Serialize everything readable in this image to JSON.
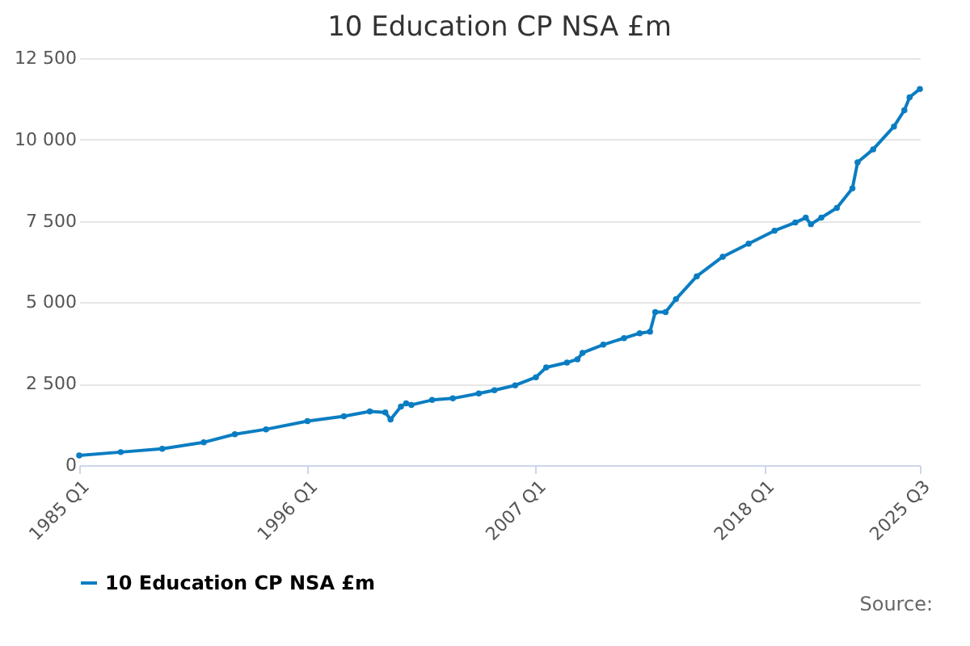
{
  "chart_data": {
    "type": "line",
    "title": "10 Education CP NSA £m",
    "x": [
      "1985-01",
      "1987-01",
      "1989-01",
      "1991-01",
      "1992-07",
      "1994-01",
      "1996-01",
      "1997-10",
      "1999-01",
      "1999-10",
      "2000-01",
      "2000-07",
      "2000-10",
      "2001-01",
      "2002-01",
      "2003-01",
      "2004-04",
      "2005-01",
      "2006-01",
      "2007-01",
      "2007-07",
      "2008-07",
      "2009-01",
      "2009-04",
      "2010-04",
      "2011-04",
      "2012-01",
      "2012-07",
      "2012-10",
      "2013-04",
      "2013-10",
      "2014-10",
      "2016-01",
      "2017-04",
      "2018-07",
      "2019-07",
      "2020-01",
      "2020-04",
      "2020-10",
      "2021-07",
      "2022-04",
      "2022-07",
      "2023-04",
      "2024-04",
      "2024-10",
      "2025-01",
      "2025-07"
    ],
    "series": [
      {
        "name": "10 Education CP NSA £m",
        "color": "#0a7dc2",
        "values": [
          300,
          400,
          500,
          700,
          950,
          1100,
          1350,
          1500,
          1650,
          1620,
          1400,
          1800,
          1900,
          1850,
          2000,
          2050,
          2200,
          2300,
          2450,
          2700,
          3000,
          3150,
          3250,
          3450,
          3700,
          3900,
          4050,
          4100,
          4700,
          4700,
          5100,
          5800,
          6400,
          6800,
          7200,
          7450,
          7600,
          7400,
          7600,
          7900,
          8500,
          9300,
          9700,
          10400,
          10900,
          11300,
          11550
        ]
      }
    ],
    "xlim": [
      "1985-01",
      "2025-07"
    ],
    "xticks": [
      {
        "value": "1985-01",
        "label": "1985 Q1"
      },
      {
        "value": "1996-01",
        "label": "1996 Q1"
      },
      {
        "value": "2007-01",
        "label": "2007 Q1"
      },
      {
        "value": "2018-01",
        "label": "2018 Q1"
      },
      {
        "value": "2025-07",
        "label": "2025 Q3"
      }
    ],
    "ylim": [
      0,
      12500
    ],
    "yticks": [
      0,
      {
        "value": 2500,
        "label": "2 500"
      },
      {
        "value": 5000,
        "label": "5 000"
      },
      {
        "value": 7500,
        "label": "7 500"
      },
      {
        "value": 10000,
        "label": "10 000"
      },
      {
        "value": 12500,
        "label": "12 500"
      }
    ],
    "grid": "y",
    "legend": "bottom",
    "marker": "circle",
    "line_style": "solid",
    "annotations": [
      "Source:"
    ]
  }
}
